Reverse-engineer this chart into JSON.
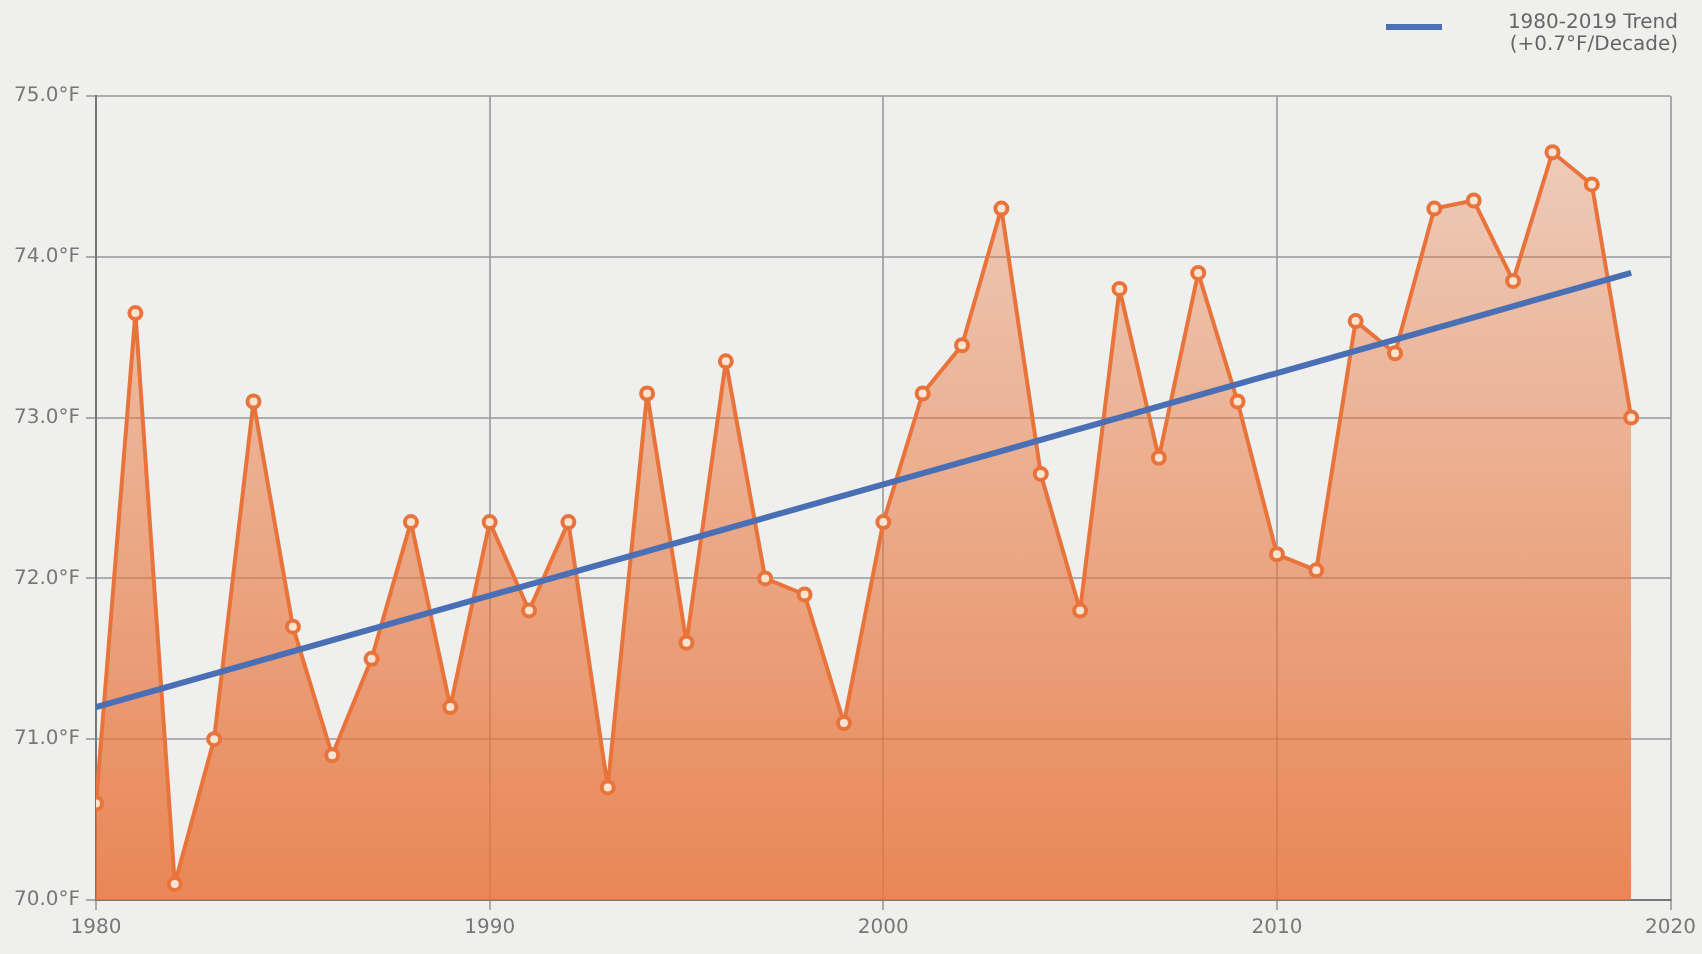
{
  "chart_data": {
    "type": "area",
    "x": [
      1980,
      1981,
      1982,
      1983,
      1984,
      1985,
      1986,
      1987,
      1988,
      1989,
      1990,
      1991,
      1992,
      1993,
      1994,
      1995,
      1996,
      1997,
      1998,
      1999,
      2000,
      2001,
      2002,
      2003,
      2004,
      2005,
      2006,
      2007,
      2008,
      2009,
      2010,
      2011,
      2012,
      2013,
      2014,
      2015,
      2016,
      2017,
      2018,
      2019
    ],
    "series": [
      {
        "color": "#e8743b",
        "marker": "circle",
        "values": [
          70.6,
          73.65,
          70.1,
          71.0,
          73.1,
          71.7,
          70.9,
          71.5,
          72.35,
          71.2,
          72.35,
          71.8,
          72.35,
          70.7,
          73.15,
          71.6,
          73.35,
          72.0,
          71.9,
          71.1,
          72.35,
          73.15,
          73.45,
          74.3,
          72.65,
          71.8,
          73.8,
          72.75,
          73.9,
          73.1,
          72.15,
          72.05,
          73.6,
          73.4,
          74.3,
          74.35,
          73.85,
          74.65,
          74.45,
          73.0
        ]
      },
      {
        "type": "line",
        "name": "1980-2019 Trend (+0.7°F/Decade)",
        "color": "#4a6fb5",
        "marker": "none",
        "x": [
          1980,
          2019
        ],
        "values": [
          71.2,
          73.9
        ]
      }
    ],
    "xlim": [
      1980,
      2020
    ],
    "xticks": [
      1980,
      1990,
      2000,
      2010,
      2020
    ],
    "ylim": [
      70,
      75
    ],
    "yticks": [
      {
        "value": 70,
        "label": "70.0°F"
      },
      {
        "value": 71,
        "label": "71.0°F"
      },
      {
        "value": 72,
        "label": "72.0°F"
      },
      {
        "value": 73,
        "label": "73.0°F"
      },
      {
        "value": 74,
        "label": "74.0°F"
      },
      {
        "value": 75,
        "label": "75.0°F"
      }
    ],
    "grid": true,
    "legend": "top right"
  }
}
